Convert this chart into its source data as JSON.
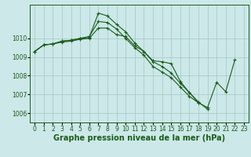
{
  "background_color": "#cce8e8",
  "grid_color": "#aacccc",
  "line_color": "#1a5c1a",
  "xlabel": "Graphe pression niveau de la mer (hPa)",
  "xlabel_fontsize": 7,
  "tick_fontsize": 5.5,
  "ylim": [
    1005.5,
    1011.8
  ],
  "xlim": [
    -0.5,
    23.5
  ],
  "yticks": [
    1006,
    1007,
    1008,
    1009,
    1010
  ],
  "xticks": [
    0,
    1,
    2,
    3,
    4,
    5,
    6,
    7,
    8,
    9,
    10,
    11,
    12,
    13,
    14,
    15,
    16,
    17,
    18,
    19,
    20,
    21,
    22,
    23
  ],
  "series": [
    [
      1009.3,
      1009.65,
      1009.7,
      1009.85,
      1009.9,
      1010.0,
      1010.05,
      1011.35,
      1011.2,
      1010.75,
      1010.35,
      1009.75,
      1009.3,
      1008.8,
      1008.75,
      1008.65,
      1007.7,
      1007.1,
      1006.6,
      1006.2,
      null,
      null,
      null,
      null
    ],
    [
      1009.3,
      1009.65,
      1009.7,
      1009.85,
      1009.9,
      1010.0,
      1010.1,
      1010.9,
      1010.85,
      1010.5,
      1010.0,
      1009.5,
      1009.1,
      1008.5,
      1008.2,
      1007.9,
      1007.4,
      1006.9,
      1006.55,
      1006.3,
      1007.65,
      1007.15,
      1008.85,
      null
    ],
    [
      1009.3,
      1009.65,
      1009.7,
      1009.8,
      1009.85,
      1009.95,
      1010.0,
      1010.55,
      1010.55,
      1010.2,
      1010.1,
      1009.6,
      1009.3,
      1008.75,
      1008.5,
      1008.15,
      1007.6,
      1007.1,
      1006.55,
      null,
      null,
      null,
      null,
      null
    ]
  ]
}
